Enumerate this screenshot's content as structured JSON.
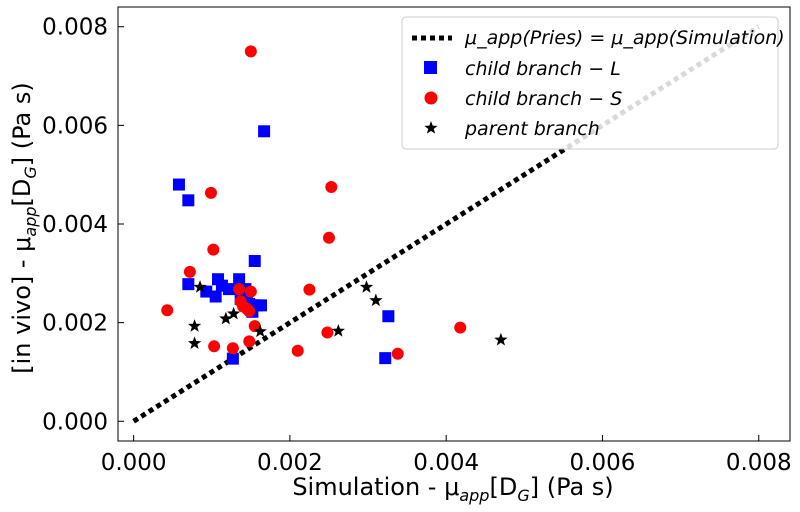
{
  "chart_data": {
    "type": "scatter",
    "xlabel": "Simulation - μ",
    "xlabel_sub": "app",
    "xlabel_tail": "[D",
    "xlabel_tail_sub": "G",
    "xlabel_end": "] (Pa s)",
    "ylabel": "[in vivo] - μ",
    "ylabel_sub": "app",
    "ylabel_tail": "[D",
    "ylabel_tail_sub": "G",
    "ylabel_end": "] (Pa s)",
    "xlim": [
      -0.0002,
      0.0084
    ],
    "ylim": [
      -0.0004,
      0.0084
    ],
    "x_ticks": [
      0.0,
      0.002,
      0.004,
      0.006,
      0.008
    ],
    "x_tick_labels": [
      "0.000",
      "0.002",
      "0.004",
      "0.006",
      "0.008"
    ],
    "y_ticks": [
      0.0,
      0.002,
      0.004,
      0.006,
      0.008
    ],
    "y_tick_labels": [
      "0.000",
      "0.002",
      "0.004",
      "0.006",
      "0.008"
    ],
    "grid": false,
    "legend_position": "top-right",
    "identity_line": {
      "label": "μ_app(Pries) = μ_app(Simulation)",
      "x": [
        0.0,
        0.008
      ],
      "y": [
        0.0,
        0.008
      ],
      "color": "#000000",
      "style": "dotted"
    },
    "series": [
      {
        "name": "child branch − L",
        "marker": "square",
        "color": "#0000ff",
        "points": [
          [
            0.00058,
            0.0048
          ],
          [
            0.0007,
            0.00448
          ],
          [
            0.0007,
            0.00278
          ],
          [
            0.00093,
            0.00263
          ],
          [
            0.00105,
            0.00253
          ],
          [
            0.00108,
            0.00288
          ],
          [
            0.00113,
            0.00275
          ],
          [
            0.00122,
            0.00268
          ],
          [
            0.00127,
            0.00127
          ],
          [
            0.00135,
            0.00288
          ],
          [
            0.00137,
            0.00248
          ],
          [
            0.00143,
            0.00268
          ],
          [
            0.00145,
            0.00258
          ],
          [
            0.00148,
            0.00238
          ],
          [
            0.00152,
            0.00222
          ],
          [
            0.00153,
            0.00235
          ],
          [
            0.00155,
            0.00325
          ],
          [
            0.00158,
            0.00235
          ],
          [
            0.00163,
            0.00235
          ],
          [
            0.00167,
            0.00588
          ],
          [
            0.00322,
            0.00128
          ],
          [
            0.00326,
            0.00213
          ]
        ]
      },
      {
        "name": "child branch − S",
        "marker": "circle",
        "color": "#ff0000",
        "points": [
          [
            0.00043,
            0.00225
          ],
          [
            0.00072,
            0.00303
          ],
          [
            0.00099,
            0.00463
          ],
          [
            0.00102,
            0.00348
          ],
          [
            0.00103,
            0.00152
          ],
          [
            0.00127,
            0.00148
          ],
          [
            0.00135,
            0.00268
          ],
          [
            0.00137,
            0.00243
          ],
          [
            0.0014,
            0.00233
          ],
          [
            0.00145,
            0.00228
          ],
          [
            0.00148,
            0.00223
          ],
          [
            0.00148,
            0.00162
          ],
          [
            0.0015,
            0.0075
          ],
          [
            0.0015,
            0.00263
          ],
          [
            0.00155,
            0.00193
          ],
          [
            0.0021,
            0.00143
          ],
          [
            0.00225,
            0.00267
          ],
          [
            0.00248,
            0.0018
          ],
          [
            0.0025,
            0.00372
          ],
          [
            0.00253,
            0.00475
          ],
          [
            0.00338,
            0.00137
          ],
          [
            0.00418,
            0.0019
          ]
        ]
      },
      {
        "name": "parent branch",
        "marker": "star",
        "color": "#000000",
        "points": [
          [
            0.00078,
            0.00193
          ],
          [
            0.00078,
            0.00158
          ],
          [
            0.00085,
            0.00272
          ],
          [
            0.00118,
            0.00208
          ],
          [
            0.00128,
            0.00218
          ],
          [
            0.00162,
            0.00182
          ],
          [
            0.00262,
            0.00183
          ],
          [
            0.00298,
            0.00272
          ],
          [
            0.0031,
            0.00245
          ],
          [
            0.0047,
            0.00165
          ]
        ]
      }
    ]
  }
}
